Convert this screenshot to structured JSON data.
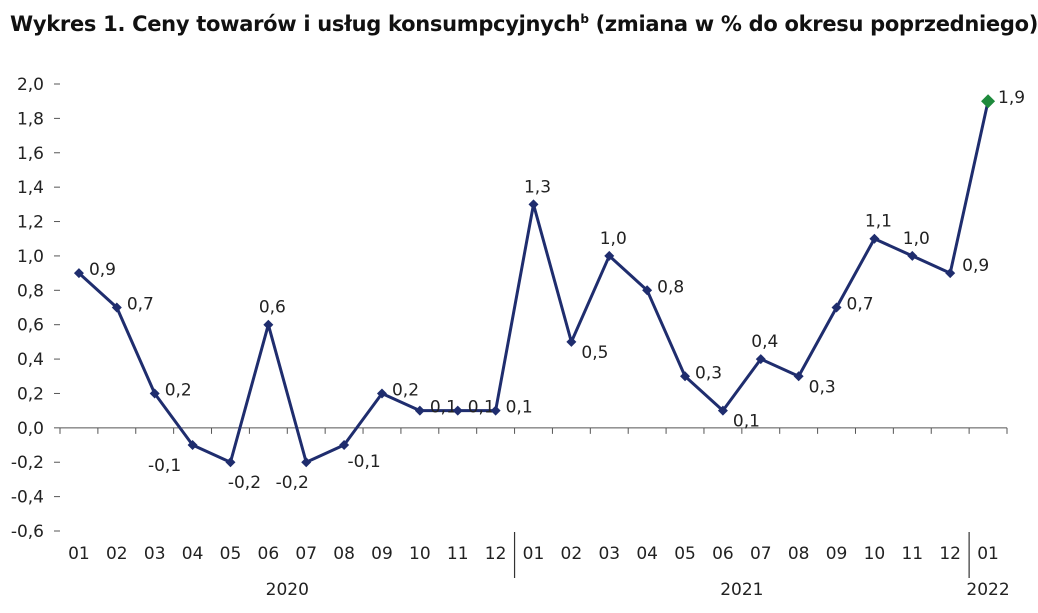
{
  "title": "Wykres 1. Ceny towarów i usług konsumpcyjnych",
  "title_sup": "b",
  "title_suffix": " (zmiana w % do okresu poprzedniego)",
  "colors": {
    "line": "#1f2d6e",
    "highlight": "#1e8a3c",
    "axis": "#555555"
  },
  "chart_data": {
    "type": "line",
    "title": "Wykres 1. Ceny towarów i usług konsumpcyjnych (zmiana w % do okresu poprzedniego)",
    "categories": [
      "01",
      "02",
      "03",
      "04",
      "05",
      "06",
      "07",
      "08",
      "09",
      "10",
      "11",
      "12",
      "01",
      "02",
      "03",
      "04",
      "05",
      "06",
      "07",
      "08",
      "09",
      "10",
      "11",
      "12",
      "01"
    ],
    "values": [
      0.9,
      0.7,
      0.2,
      -0.1,
      -0.2,
      0.6,
      -0.2,
      -0.1,
      0.2,
      0.1,
      0.1,
      0.1,
      1.3,
      0.5,
      1.0,
      0.8,
      0.3,
      0.1,
      0.4,
      0.3,
      0.7,
      1.1,
      1.0,
      0.9,
      1.9
    ],
    "labels": [
      "0,9",
      "0,7",
      "0,2",
      "-0,1",
      "-0,2",
      "0,6",
      "-0,2",
      "-0,1",
      "0,2",
      "0,1",
      "0,1",
      "0,1",
      "1,3",
      "0,5",
      "1,0",
      "0,8",
      "0,3",
      "0,1",
      "0,4",
      "0,3",
      "0,7",
      "1,1",
      "1,0",
      "0,9",
      "1,9"
    ],
    "years": [
      {
        "label": "2020",
        "from": 0,
        "to": 11
      },
      {
        "label": "2021",
        "from": 12,
        "to": 23
      },
      {
        "label": "2022",
        "from": 24,
        "to": 24
      }
    ],
    "yticks": [
      "-0,6",
      "-0,4",
      "-0,2",
      "0,0",
      "0,2",
      "0,4",
      "0,6",
      "0,8",
      "1,0",
      "1,2",
      "1,4",
      "1,6",
      "1,8",
      "2,0"
    ],
    "ylim": [
      -0.6,
      2.0
    ],
    "highlight_last": true,
    "grid": false
  }
}
